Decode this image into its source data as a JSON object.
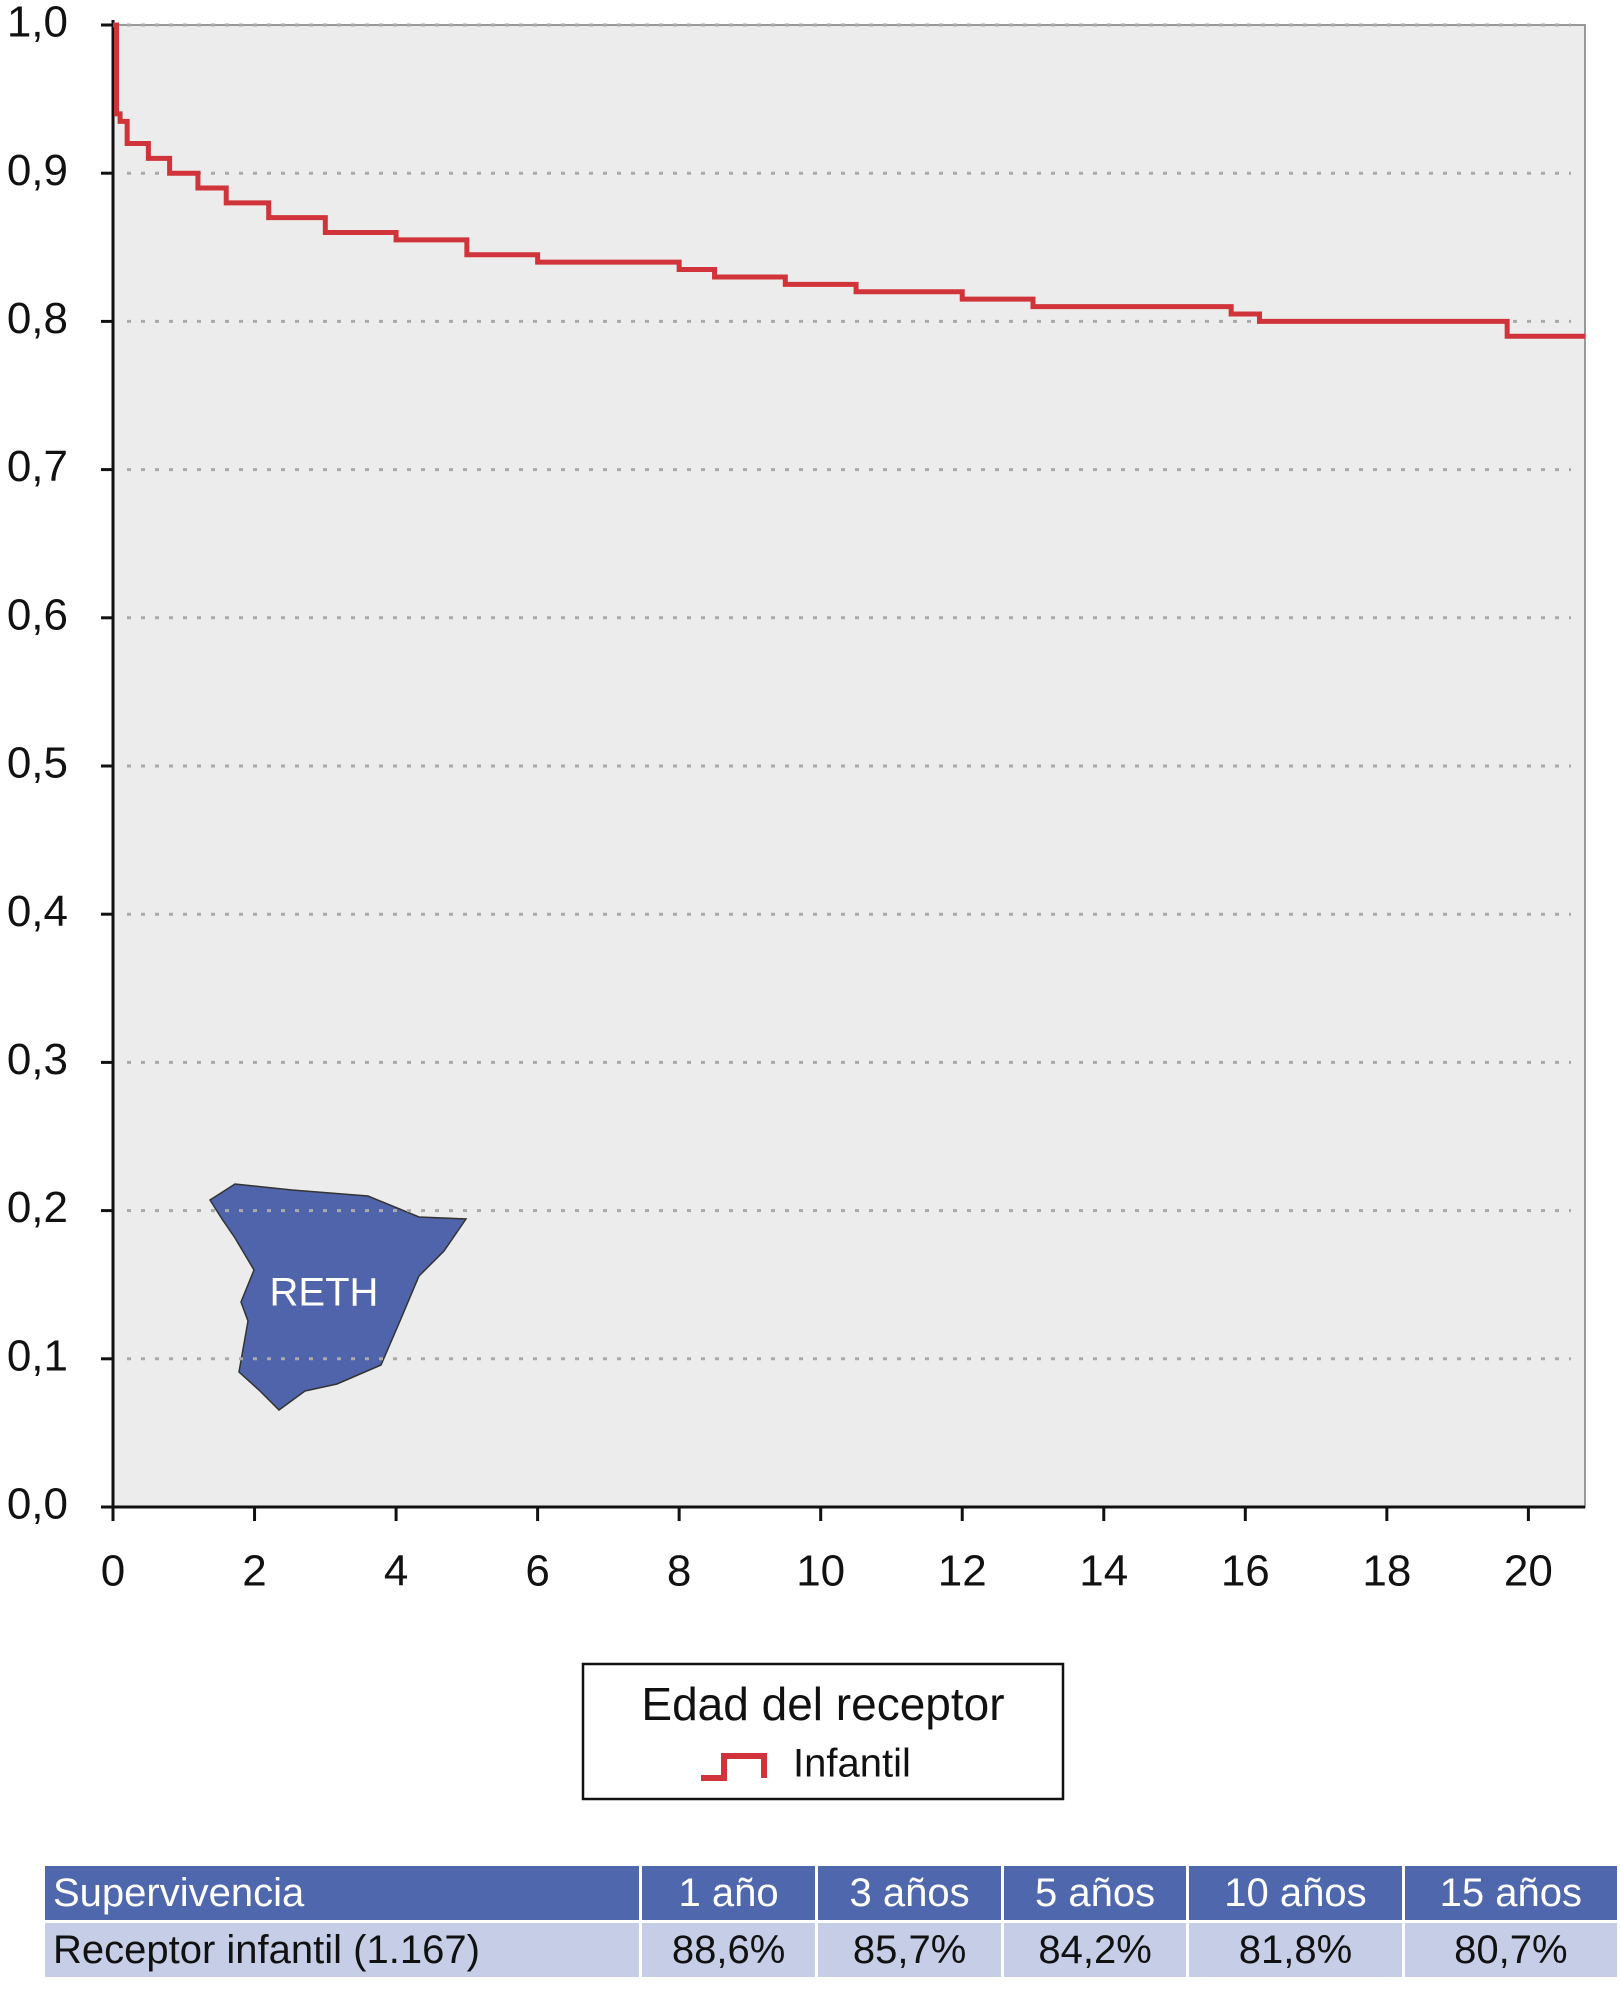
{
  "chart_data": {
    "type": "line",
    "step": "post",
    "xlim": [
      0,
      20.8
    ],
    "xticks": [
      0,
      2,
      4,
      6,
      8,
      10,
      12,
      14,
      16,
      18,
      20
    ],
    "ylim": [
      0,
      1
    ],
    "yticks": [
      {
        "value": 0,
        "label": "0,0"
      },
      {
        "value": 0.1,
        "label": "0,1"
      },
      {
        "value": 0.2,
        "label": "0,2"
      },
      {
        "value": 0.3,
        "label": "0,3"
      },
      {
        "value": 0.4,
        "label": "0,4"
      },
      {
        "value": 0.5,
        "label": "0,5"
      },
      {
        "value": 0.6,
        "label": "0,6"
      },
      {
        "value": 0.7,
        "label": "0,7"
      },
      {
        "value": 0.8,
        "label": "0,8"
      },
      {
        "value": 0.9,
        "label": "0,9"
      },
      {
        "value": 1,
        "label": "1,0"
      }
    ],
    "grid": true,
    "legend_title": "Edad del receptor",
    "series": [
      {
        "name": "Infantil",
        "color": "#d0343a",
        "x": [
          0,
          0.05,
          0.1,
          0.2,
          0.5,
          0.8,
          1.2,
          1.6,
          2.2,
          3,
          4,
          5,
          6,
          8,
          8.5,
          9.5,
          10.5,
          12,
          13,
          15.8,
          16.2,
          19.7,
          20.8
        ],
        "values": [
          1,
          0.94,
          0.935,
          0.92,
          0.91,
          0.9,
          0.89,
          0.88,
          0.87,
          0.86,
          0.855,
          0.845,
          0.84,
          0.835,
          0.83,
          0.825,
          0.82,
          0.815,
          0.81,
          0.805,
          0.8,
          0.79,
          0.79
        ]
      }
    ],
    "logo_text": "RETH"
  },
  "table": {
    "header": [
      "Supervivencia",
      "1 año",
      "3 años",
      "5 años",
      "10 años",
      "15 años"
    ],
    "rows": [
      [
        "Receptor infantil (1.167)",
        "88,6%",
        "85,7%",
        "84,2%",
        "81,8%",
        "80,7%"
      ]
    ]
  }
}
